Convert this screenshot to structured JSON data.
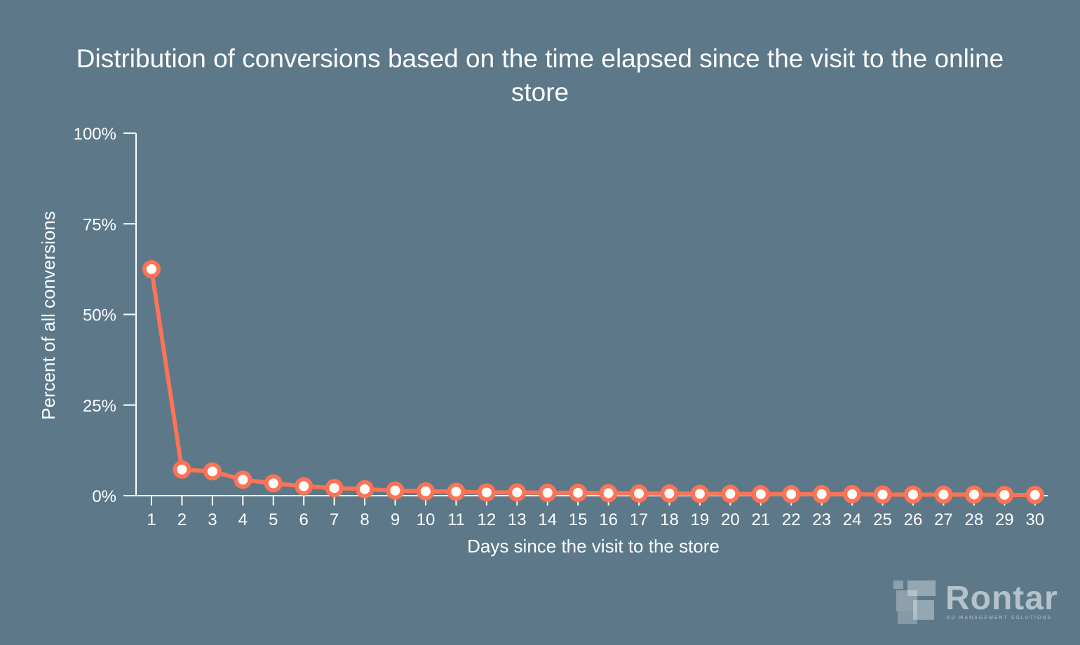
{
  "chart_data": {
    "type": "line",
    "title": "Distribution of conversions based on the time elapsed since the visit to the online store",
    "xlabel": "Days since the visit to the store",
    "ylabel": "Percent of all conversions",
    "x": [
      1,
      2,
      3,
      4,
      5,
      6,
      7,
      8,
      9,
      10,
      11,
      12,
      13,
      14,
      15,
      16,
      17,
      18,
      19,
      20,
      21,
      22,
      23,
      24,
      25,
      26,
      27,
      28,
      29,
      30
    ],
    "xticks": [
      "1",
      "2",
      "3",
      "4",
      "5",
      "6",
      "7",
      "8",
      "9",
      "10",
      "11",
      "12",
      "13",
      "14",
      "15",
      "16",
      "17",
      "18",
      "19",
      "20",
      "21",
      "22",
      "23",
      "24",
      "25",
      "26",
      "27",
      "28",
      "29",
      "30"
    ],
    "ylim": [
      0,
      100
    ],
    "yticks": [
      {
        "value": 0,
        "label": "0%"
      },
      {
        "value": 25,
        "label": "25%"
      },
      {
        "value": 50,
        "label": "50%"
      },
      {
        "value": 75,
        "label": "75%"
      },
      {
        "value": 100,
        "label": "100%"
      }
    ],
    "series": [
      {
        "values": [
          62.5,
          7.2,
          6.7,
          4.4,
          3.4,
          2.6,
          2.1,
          1.8,
          1.4,
          1.2,
          1.1,
          0.9,
          0.9,
          0.8,
          0.8,
          0.7,
          0.6,
          0.6,
          0.5,
          0.5,
          0.4,
          0.4,
          0.4,
          0.4,
          0.3,
          0.3,
          0.3,
          0.3,
          0.2,
          0.2
        ]
      }
    ],
    "grid": false,
    "colors": {
      "line": "#fd7355",
      "marker_fill": "#ffffff",
      "axis": "#ffffff",
      "background": "#5c7889"
    }
  },
  "logo": {
    "name": "Rontar",
    "tagline": "AD MANAGEMENT SOLUTIONS"
  }
}
